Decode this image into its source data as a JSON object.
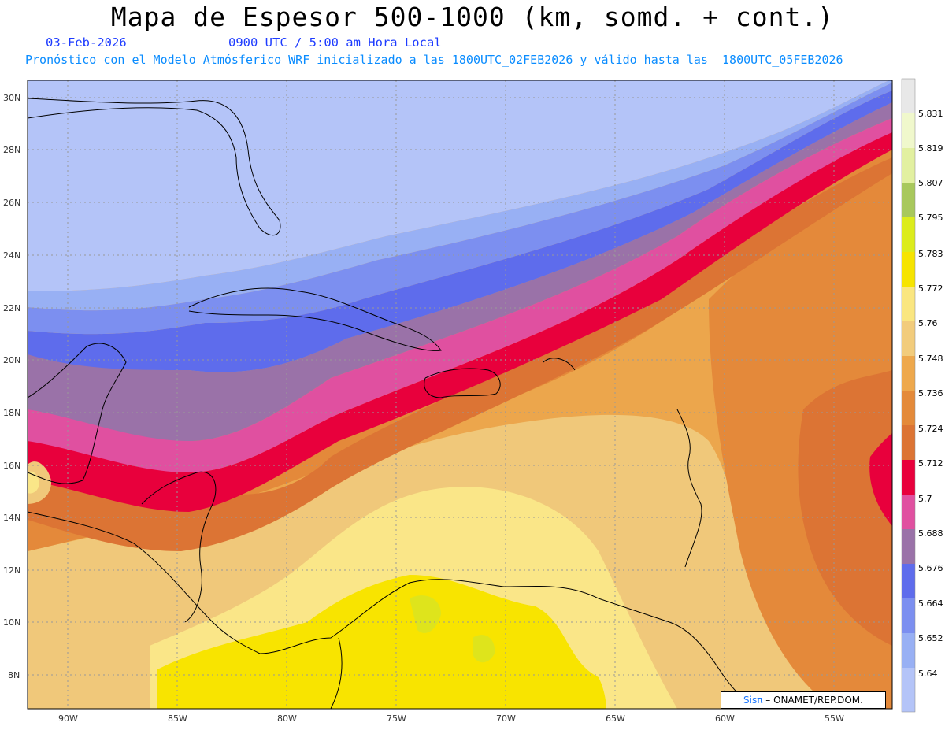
{
  "header": {
    "title": "Mapa de Espesor 500-1000 (km, somd. + cont.)",
    "date": "03-Feb-2026",
    "time": "0900 UTC / 5:00 am Hora Local",
    "forecast": "Pronóstico con el Modelo Atmósferico WRF inicializado a las 1800UTC_02FEB2026 y válido hasta las  1800UTC_05FEB2026"
  },
  "map": {
    "lat_labels": [
      "30N",
      "28N",
      "26N",
      "24N",
      "22N",
      "20N",
      "18N",
      "16N",
      "14N",
      "12N",
      "10N",
      "8N"
    ],
    "lon_labels": [
      "90W",
      "85W",
      "80W",
      "75W",
      "70W",
      "65W",
      "60W",
      "55W"
    ],
    "bands": [
      {
        "level": "<5.64",
        "color": "#b4c4f8"
      },
      {
        "level": "5.64",
        "color": "#98b0f4"
      },
      {
        "level": "5.652",
        "color": "#7c8ff0"
      },
      {
        "level": "5.664",
        "color": "#5e6cec"
      },
      {
        "level": "5.676",
        "color": "#9a72a8"
      },
      {
        "level": "5.688",
        "color": "#e050a0"
      },
      {
        "level": "5.7",
        "color": "#e8003c"
      },
      {
        "level": "5.712",
        "color": "#dc7434"
      },
      {
        "level": "5.724",
        "color": "#e4893a"
      },
      {
        "level": "5.736",
        "color": "#eca64c"
      },
      {
        "level": "5.748",
        "color": "#f0c87a"
      },
      {
        "level": "5.76",
        "color": "#fae688"
      },
      {
        "level": "5.772",
        "color": "#f8e400"
      },
      {
        "level": "5.783",
        "color": "#dee41c"
      }
    ]
  },
  "colorbar": {
    "labels": [
      "5.831",
      "5.819",
      "5.807",
      "5.795",
      "5.783",
      "5.772",
      "5.76",
      "5.748",
      "5.736",
      "5.724",
      "5.712",
      "5.7",
      "5.688",
      "5.676",
      "5.664",
      "5.652",
      "5.64"
    ],
    "colors": [
      "#e8e8e8",
      "#f0f8cc",
      "#e2f0a0",
      "#a8c85c",
      "#dcec1c",
      "#f6e400",
      "#fae680",
      "#f2cc7c",
      "#eea84c",
      "#e48a3a",
      "#dc7434",
      "#e8003c",
      "#e050a0",
      "#9a72a8",
      "#5e6cec",
      "#7c8ff0",
      "#98b0f4",
      "#b4c4f8"
    ]
  },
  "credit": {
    "logo": "Sisπ",
    "text": "– ONAMET/REP.DOM."
  }
}
